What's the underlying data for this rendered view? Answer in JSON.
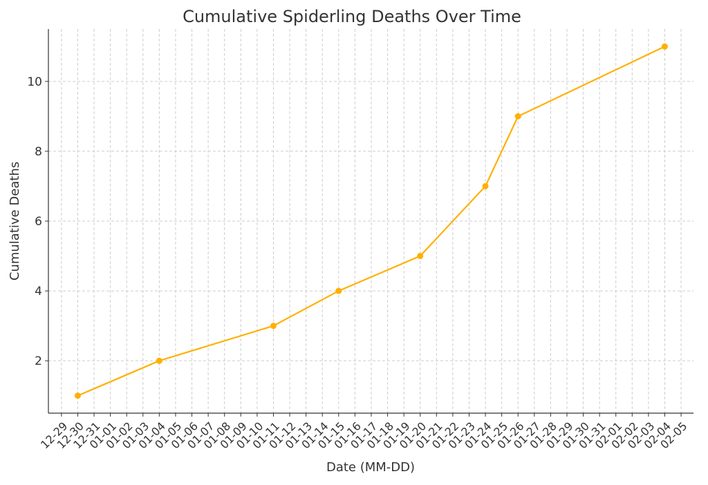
{
  "chart_data": {
    "type": "line",
    "title": "Cumulative Spiderling Deaths Over Time",
    "xlabel": "Date (MM-DD)",
    "ylabel": "Cumulative Deaths",
    "x_tick_labels": [
      "12-29",
      "12-30",
      "12-31",
      "01-01",
      "01-02",
      "01-03",
      "01-04",
      "01-05",
      "01-06",
      "01-07",
      "01-08",
      "01-09",
      "01-10",
      "01-11",
      "01-12",
      "01-13",
      "01-14",
      "01-15",
      "01-16",
      "01-17",
      "01-18",
      "01-19",
      "01-20",
      "01-21",
      "01-22",
      "01-23",
      "01-24",
      "01-25",
      "01-26",
      "01-27",
      "01-28",
      "01-29",
      "01-30",
      "01-31",
      "02-01",
      "02-02",
      "02-03",
      "02-04",
      "02-05"
    ],
    "y_ticks": [
      2,
      4,
      6,
      8,
      10
    ],
    "ylim": [
      0.5,
      11.5
    ],
    "xlim_days": [
      -0.8,
      38.76
    ],
    "grid": true,
    "series": [
      {
        "name": "Cumulative Deaths",
        "color": "#FFB000",
        "x": [
          "12-30",
          "01-04",
          "01-11",
          "01-15",
          "01-20",
          "01-24",
          "01-26",
          "02-04"
        ],
        "values": [
          1,
          2,
          3,
          4,
          5,
          7,
          9,
          11
        ]
      }
    ]
  }
}
